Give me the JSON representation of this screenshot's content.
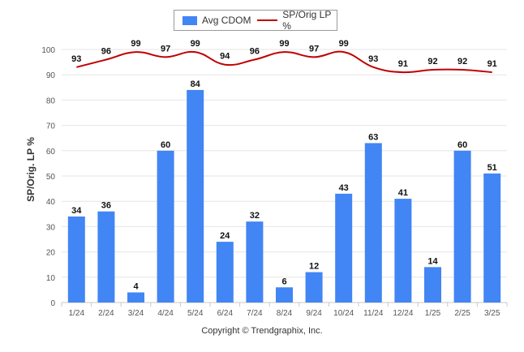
{
  "legend": {
    "series1_label": "Avg CDOM",
    "series2_label": "SP/Orig LP %"
  },
  "colors": {
    "bar": "#4285f4",
    "line": "#c00000",
    "grid": "#e6e6e6",
    "axis_text": "#555555"
  },
  "copyright": "Copyright © Trendgraphix, Inc.",
  "chart_data": {
    "type": "bar",
    "categories": [
      "1/24",
      "2/24",
      "3/24",
      "4/24",
      "5/24",
      "6/24",
      "7/24",
      "8/24",
      "9/24",
      "10/24",
      "11/24",
      "12/24",
      "1/25",
      "2/25",
      "3/25"
    ],
    "series": [
      {
        "name": "Avg CDOM",
        "type": "bar",
        "values": [
          34,
          36,
          4,
          60,
          84,
          24,
          32,
          6,
          12,
          43,
          63,
          41,
          14,
          60,
          51
        ]
      },
      {
        "name": "SP/Orig LP %",
        "type": "line",
        "values": [
          93,
          96,
          99,
          97,
          99,
          94,
          96,
          99,
          97,
          99,
          93,
          91,
          92,
          92,
          91
        ]
      }
    ],
    "ylabel": "SP/Orig. LP %",
    "xlabel": "",
    "ylim": [
      0,
      100
    ],
    "yticks": [
      0,
      10,
      20,
      30,
      40,
      50,
      60,
      70,
      80,
      90,
      100
    ],
    "grid": true,
    "legend_position": "top-center"
  }
}
